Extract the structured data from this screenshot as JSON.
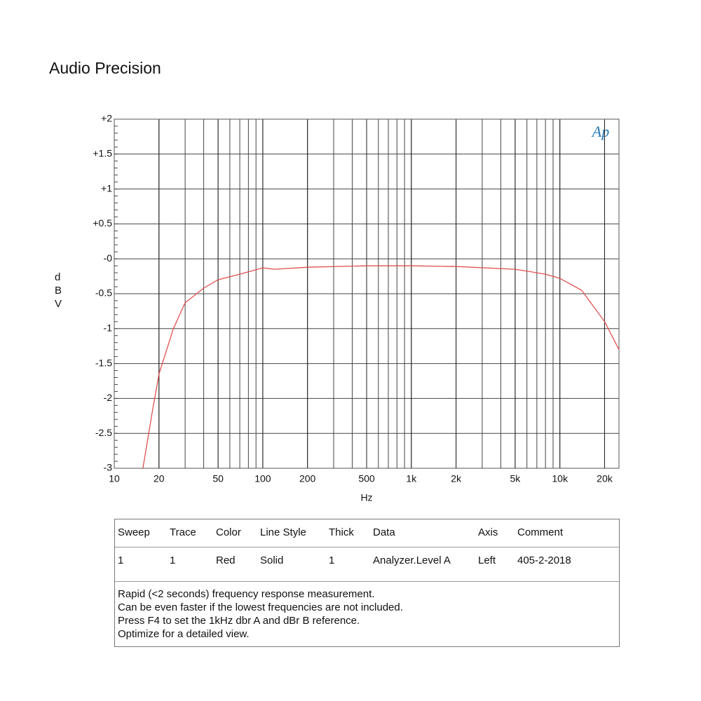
{
  "chart_data": {
    "type": "line",
    "title": "Audio Precision",
    "x_label": "Hz",
    "y_label": "dBV",
    "logo": "Ap",
    "xlog": true,
    "grid": true,
    "color": "#e05050",
    "xlim": [
      10,
      25000
    ],
    "ylim": [
      -3,
      2
    ],
    "xticks": [
      10,
      20,
      50,
      100,
      200,
      500,
      {
        "value": 1000,
        "label": "1k"
      },
      {
        "value": 2000,
        "label": "2k"
      },
      {
        "value": 5000,
        "label": "5k"
      },
      {
        "value": 10000,
        "label": "10k"
      },
      {
        "value": 20000,
        "label": "20k"
      }
    ],
    "yticks": [
      {
        "value": 2,
        "label": "+2"
      },
      {
        "value": 1.5,
        "label": "+1.5"
      },
      {
        "value": 1,
        "label": "+1"
      },
      {
        "value": 0.5,
        "label": "+0.5"
      },
      {
        "value": 0,
        "label": "-0"
      },
      -0.5,
      -1,
      -1.5,
      -2,
      -2.5,
      -3
    ],
    "x": [
      15.6,
      18,
      20,
      25,
      30,
      40,
      50,
      70,
      100,
      120,
      200,
      500,
      1000,
      2000,
      5000,
      8000,
      10000,
      14000,
      20000,
      25000
    ],
    "values": [
      -3,
      -2.2,
      -1.65,
      -1.0,
      -0.63,
      -0.42,
      -0.3,
      -0.22,
      -0.13,
      -0.15,
      -0.12,
      -0.1,
      -0.1,
      -0.11,
      -0.15,
      -0.22,
      -0.28,
      -0.45,
      -0.9,
      -1.3
    ]
  },
  "table": {
    "columns": [
      "Sweep",
      "Trace",
      "Color",
      "Line Style",
      "Thick",
      "Data",
      "Axis",
      "Comment"
    ],
    "rows": [
      [
        "1",
        "1",
        "Red",
        "Solid",
        "1",
        "Analyzer.Level A",
        "Left",
        "405-2-2018"
      ]
    ],
    "notes": [
      "Rapid (<2 seconds) frequency response measurement.",
      "Can be even faster if the lowest frequencies are not included.",
      "Press F4 to set the 1kHz dbr A and dBr B reference.",
      "Optimize for a detailed view."
    ]
  }
}
